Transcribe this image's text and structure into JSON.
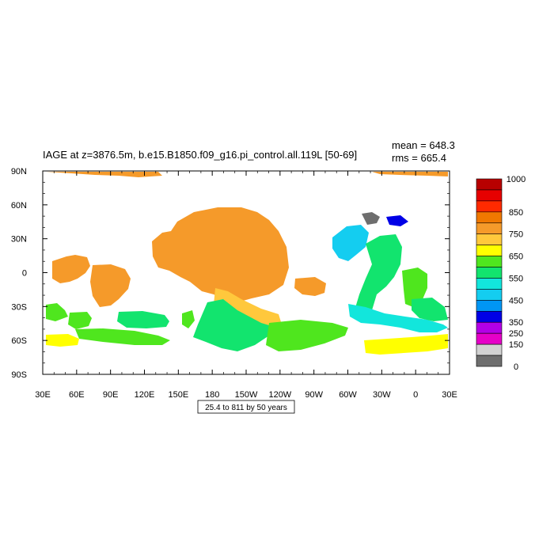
{
  "title": "IAGE at z=3876.5m, b.e15.B1850.f09_g16.pi_control.all.119L [50-69]",
  "stats": {
    "mean": "mean = 648.3",
    "rms": "rms = 665.4"
  },
  "subtitle_box": "25.4 to 811 by 50 years",
  "chart_data": {
    "type": "heatmap",
    "x_tick_labels": [
      "30E",
      "60E",
      "90E",
      "120E",
      "150E",
      "180",
      "150W",
      "120W",
      "90W",
      "60W",
      "30W",
      "0",
      "30E"
    ],
    "y_tick_labels": [
      "90N",
      "60N",
      "30N",
      "0",
      "30S",
      "60S",
      "90S"
    ],
    "colorbar": {
      "labels": [
        "1000",
        "850",
        "750",
        "650",
        "550",
        "450",
        "350",
        "250",
        "150",
        "0"
      ],
      "colors": [
        "#b80000",
        "#e60000",
        "#ff2a00",
        "#f07800",
        "#f59a2a",
        "#ffc83c",
        "#ffff00",
        "#4fe61e",
        "#12e46e",
        "#12e6dc",
        "#14cdf0",
        "#0096f5",
        "#0000e6",
        "#b400e6",
        "#e600c8",
        "#d2d2d2",
        "#6e6e6e"
      ]
    },
    "regions": [
      {
        "name": "arctic-a",
        "color": "#f59a2a"
      },
      {
        "name": "arctic-b",
        "color": "#f59a2a"
      },
      {
        "name": "pacific",
        "color": "#f59a2a"
      },
      {
        "name": "indian-north",
        "color": "#f59a2a"
      },
      {
        "name": "east-pacific",
        "color": "#f59a2a"
      },
      {
        "name": "south-pacific",
        "color": "#ffc83c"
      },
      {
        "name": "southern-west",
        "color": "#4fe61e"
      },
      {
        "name": "southern-central",
        "color": "#12e46e"
      },
      {
        "name": "southern-east",
        "color": "#12e46e"
      },
      {
        "name": "north-atlantic",
        "color": "#14cdf0"
      },
      {
        "name": "atlantic",
        "color": "#12e46e"
      },
      {
        "name": "south-atlantic",
        "color": "#12e6dc"
      },
      {
        "name": "weddell",
        "color": "#ffff00"
      }
    ]
  }
}
